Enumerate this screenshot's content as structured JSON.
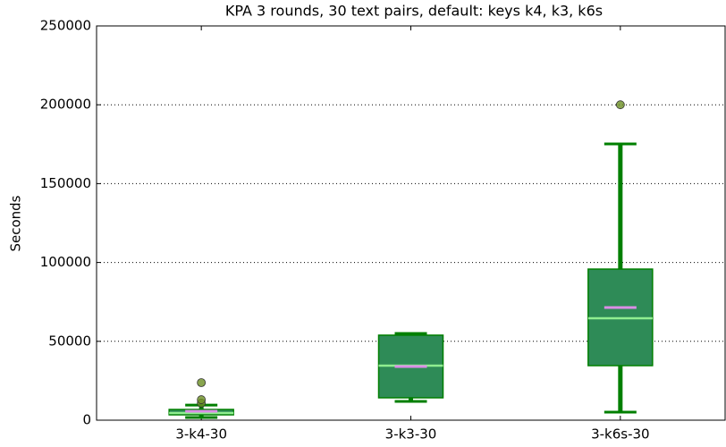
{
  "chart_data": {
    "type": "box",
    "title": "KPA 3 rounds, 30 text pairs, default: keys k4, k3, k6s",
    "y_label": "Seconds",
    "categories": [
      "3-k4-30",
      "3-k3-30",
      "3-k6s-30"
    ],
    "boxes": [
      {
        "whislo": 1700,
        "q1": 3400,
        "med": 4500,
        "mean": 5700,
        "q3": 6800,
        "whishi": 9600,
        "outliers": [
          10800,
          13000,
          23800
        ]
      },
      {
        "whislo": 11900,
        "q1": 14200,
        "med": 34600,
        "mean": 34000,
        "q3": 53900,
        "whishi": 55000,
        "outliers": []
      },
      {
        "whislo": 5100,
        "q1": 34600,
        "med": 64600,
        "mean": 71400,
        "q3": 95800,
        "whishi": 175200,
        "outliers": [
          200000
        ]
      }
    ],
    "box_color": "#2e8b57",
    "whisker_color": "#007f00",
    "median_color": "#90ee90",
    "mean_color": "#da8ee6",
    "outlier_color": "#6b8e23",
    "ylim": [
      0,
      250000
    ],
    "yticks": [
      0,
      50000,
      100000,
      150000,
      200000,
      250000
    ],
    "grid": true
  }
}
